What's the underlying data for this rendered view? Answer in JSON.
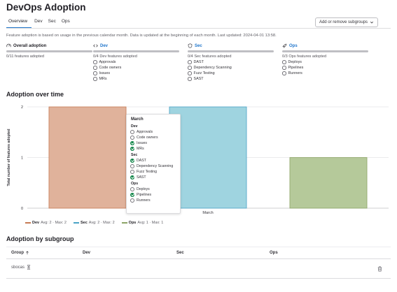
{
  "page": {
    "title": "DevOps Adoption"
  },
  "tabs": [
    {
      "label": "Overview",
      "active": true
    },
    {
      "label": "Dev"
    },
    {
      "label": "Sec"
    },
    {
      "label": "Ops"
    }
  ],
  "subgroups_button": {
    "label": "Add or remove subgroups"
  },
  "info_text": "Feature adoption is based on usage in the previous calendar month. Data is updated at the beginning of each month. Last updated: 2024-04-01 13:58.",
  "overview": {
    "overall": {
      "title": "Overall adoption",
      "subtitle": "0/11 features adopted",
      "icon": "speedometer-icon"
    },
    "dev": {
      "title": "Dev",
      "subtitle": "0/4 Dev features adopted",
      "icon": "code-icon",
      "features": [
        "Approvals",
        "Code owners",
        "Issues",
        "MRs"
      ]
    },
    "sec": {
      "title": "Sec",
      "subtitle": "0/4 Sec features adopted",
      "icon": "shield-icon",
      "features": [
        "DAST",
        "Dependency Scanning",
        "Fuzz Testing",
        "SAST"
      ]
    },
    "ops": {
      "title": "Ops",
      "subtitle": "0/3 Ops features adopted",
      "icon": "rocket-icon",
      "features": [
        "Deploys",
        "Pipelines",
        "Runners"
      ]
    }
  },
  "adoption_over_time": {
    "heading": "Adoption over time"
  },
  "chart_data": {
    "type": "bar",
    "categories": [
      "March"
    ],
    "series": [
      {
        "name": "Dev",
        "values": [
          2
        ],
        "color": "#e0b29b",
        "stroke": "#c67a54",
        "avg": "Avg: 2",
        "max": "Max: 2"
      },
      {
        "name": "Sec",
        "values": [
          2
        ],
        "color": "#9fd4e0",
        "stroke": "#4aa3c6",
        "avg": "Avg: 2",
        "max": "Max: 2"
      },
      {
        "name": "Ops",
        "values": [
          1
        ],
        "color": "#b5c99a",
        "stroke": "#8ca466",
        "avg": "Avg: 1",
        "max": "Max: 1"
      }
    ],
    "ylabel": "Total number of features adopted",
    "ylim": [
      0,
      2
    ],
    "yticks": [
      "0",
      "1",
      "2"
    ],
    "grid": true
  },
  "tooltip": {
    "title": "March",
    "sections": [
      {
        "name": "Dev",
        "items": [
          {
            "label": "Approvals",
            "adopted": false
          },
          {
            "label": "Code owners",
            "adopted": false
          },
          {
            "label": "Issues",
            "adopted": true
          },
          {
            "label": "MRs",
            "adopted": true
          }
        ]
      },
      {
        "name": "Sec",
        "items": [
          {
            "label": "DAST",
            "adopted": true
          },
          {
            "label": "Dependency Scanning",
            "adopted": false
          },
          {
            "label": "Fuzz Testing",
            "adopted": false
          },
          {
            "label": "SAST",
            "adopted": true
          }
        ]
      },
      {
        "name": "Ops",
        "items": [
          {
            "label": "Deploys",
            "adopted": false
          },
          {
            "label": "Pipelines",
            "adopted": true
          },
          {
            "label": "Runners",
            "adopted": false
          }
        ]
      }
    ]
  },
  "adoption_by_subgroup": {
    "heading": "Adoption by subgroup",
    "columns": [
      "Group",
      "Dev",
      "Sec",
      "Ops"
    ],
    "sort_icon": "arrow-up-icon",
    "rows": [
      {
        "group": "sbocas"
      }
    ]
  }
}
